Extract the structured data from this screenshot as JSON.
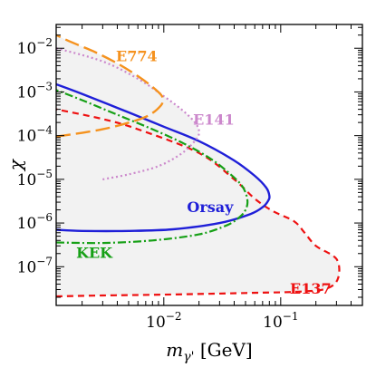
{
  "chart_data": {
    "type": "line",
    "title": "",
    "xlabel_base": "m",
    "xlabel_sub": "γ'",
    "xlabel_unit": "[GeV]",
    "ylabel": "χ",
    "xscale": "log",
    "yscale": "log",
    "xlim": [
      0.0012,
      0.5
    ],
    "ylim": [
      1.3e-08,
      0.035
    ],
    "grid": false,
    "legend": "none",
    "x_ticks": [
      {
        "value": 0.01,
        "base": "10",
        "exp": "−2"
      },
      {
        "value": 0.1,
        "base": "10",
        "exp": "−1"
      }
    ],
    "y_ticks": [
      {
        "value": 1e-07,
        "base": "10",
        "exp": "−7"
      },
      {
        "value": 1e-06,
        "base": "10",
        "exp": "−6"
      },
      {
        "value": 1e-05,
        "base": "10",
        "exp": "−5"
      },
      {
        "value": 0.0001,
        "base": "10",
        "exp": "−4"
      },
      {
        "value": 0.001,
        "base": "10",
        "exp": "−3"
      },
      {
        "value": 0.01,
        "base": "10",
        "exp": "−2"
      }
    ],
    "excluded_region_color": "#f2f2f2",
    "series": [
      {
        "name": "E137",
        "color": "#ee1111",
        "dash": "7,5",
        "width": 2.2,
        "label_x": 0.12,
        "label_y": 2.4e-08,
        "points": [
          [
            0.0012,
            2.1e-08
          ],
          [
            0.003,
            2.2e-08
          ],
          [
            0.01,
            2.3e-08
          ],
          [
            0.05,
            2.5e-08
          ],
          [
            0.15,
            2.7e-08
          ],
          [
            0.25,
            3.2e-08
          ],
          [
            0.31,
            5.5e-08
          ],
          [
            0.3,
            1.5e-07
          ],
          [
            0.2,
            3e-07
          ],
          [
            0.16,
            6e-07
          ],
          [
            0.13,
            1.1e-06
          ],
          [
            0.085,
            1.9e-06
          ],
          [
            0.06,
            3.6e-06
          ],
          [
            0.04,
            1e-05
          ],
          [
            0.02,
            4e-05
          ],
          [
            0.006,
            0.00014
          ],
          [
            0.003,
            0.00024
          ],
          [
            0.0012,
            0.0004
          ]
        ]
      },
      {
        "name": "Orsay",
        "color": "#1f1fd8",
        "dash": "",
        "width": 2.4,
        "label_x": 0.0158,
        "label_y": 1.8e-06,
        "points": [
          [
            0.0012,
            7e-07
          ],
          [
            0.002,
            6.6e-07
          ],
          [
            0.005,
            6.6e-07
          ],
          [
            0.012,
            7.2e-07
          ],
          [
            0.03,
            1e-06
          ],
          [
            0.055,
            1.6e-06
          ],
          [
            0.07,
            2.3e-06
          ],
          [
            0.078,
            3.2e-06
          ],
          [
            0.08,
            4.2e-06
          ],
          [
            0.075,
            6.5e-06
          ],
          [
            0.06,
            1.2e-05
          ],
          [
            0.04,
            2.7e-05
          ],
          [
            0.02,
            7.5e-05
          ],
          [
            0.01,
            0.00016
          ],
          [
            0.005,
            0.00034
          ],
          [
            0.002,
            0.0009
          ],
          [
            0.0012,
            0.0015
          ]
        ]
      },
      {
        "name": "KEK",
        "color": "#16a016",
        "dash": "9,3,2,3",
        "width": 2.2,
        "label_x": 0.00178,
        "label_y": 1.6e-07,
        "points": [
          [
            0.0012,
            3.6e-07
          ],
          [
            0.003,
            3.5e-07
          ],
          [
            0.008,
            4e-07
          ],
          [
            0.02,
            5.5e-07
          ],
          [
            0.035,
            9e-07
          ],
          [
            0.045,
            1.4e-06
          ],
          [
            0.05,
            2e-06
          ],
          [
            0.052,
            3e-06
          ],
          [
            0.05,
            5e-06
          ],
          [
            0.045,
            8e-06
          ],
          [
            0.035,
            1.5e-05
          ],
          [
            0.025,
            3e-05
          ],
          [
            0.015,
            6.5e-05
          ],
          [
            0.008,
            0.00014
          ],
          [
            0.004,
            0.0003
          ],
          [
            0.002,
            0.00065
          ],
          [
            0.0012,
            0.0011
          ]
        ]
      },
      {
        "name": "E141",
        "color": "#cc88cc",
        "dash": "2,3",
        "width": 2.2,
        "label_x": 0.0178,
        "label_y": 0.00018,
        "points": [
          [
            0.003,
            1e-05
          ],
          [
            0.005,
            1.3e-05
          ],
          [
            0.009,
            2e-05
          ],
          [
            0.014,
            3.8e-05
          ],
          [
            0.018,
            7e-05
          ],
          [
            0.02,
            0.00011
          ],
          [
            0.019,
            0.00018
          ],
          [
            0.015,
            0.00035
          ],
          [
            0.01,
            0.0008
          ],
          [
            0.006,
            0.002
          ],
          [
            0.003,
            0.005
          ],
          [
            0.0012,
            0.01
          ]
        ]
      },
      {
        "name": "E774",
        "color": "#f5921e",
        "dash": "16,6",
        "width": 2.4,
        "label_x": 0.0039,
        "label_y": 0.005,
        "points": [
          [
            0.0012,
            9.5e-05
          ],
          [
            0.003,
            0.00014
          ],
          [
            0.006,
            0.00023
          ],
          [
            0.008,
            0.00033
          ],
          [
            0.0095,
            0.0005
          ],
          [
            0.0098,
            0.00065
          ],
          [
            0.0095,
            0.00085
          ],
          [
            0.008,
            0.0013
          ],
          [
            0.006,
            0.0023
          ],
          [
            0.004,
            0.0045
          ],
          [
            0.0025,
            0.0085
          ],
          [
            0.0016,
            0.014
          ],
          [
            0.0012,
            0.02
          ]
        ]
      }
    ]
  }
}
